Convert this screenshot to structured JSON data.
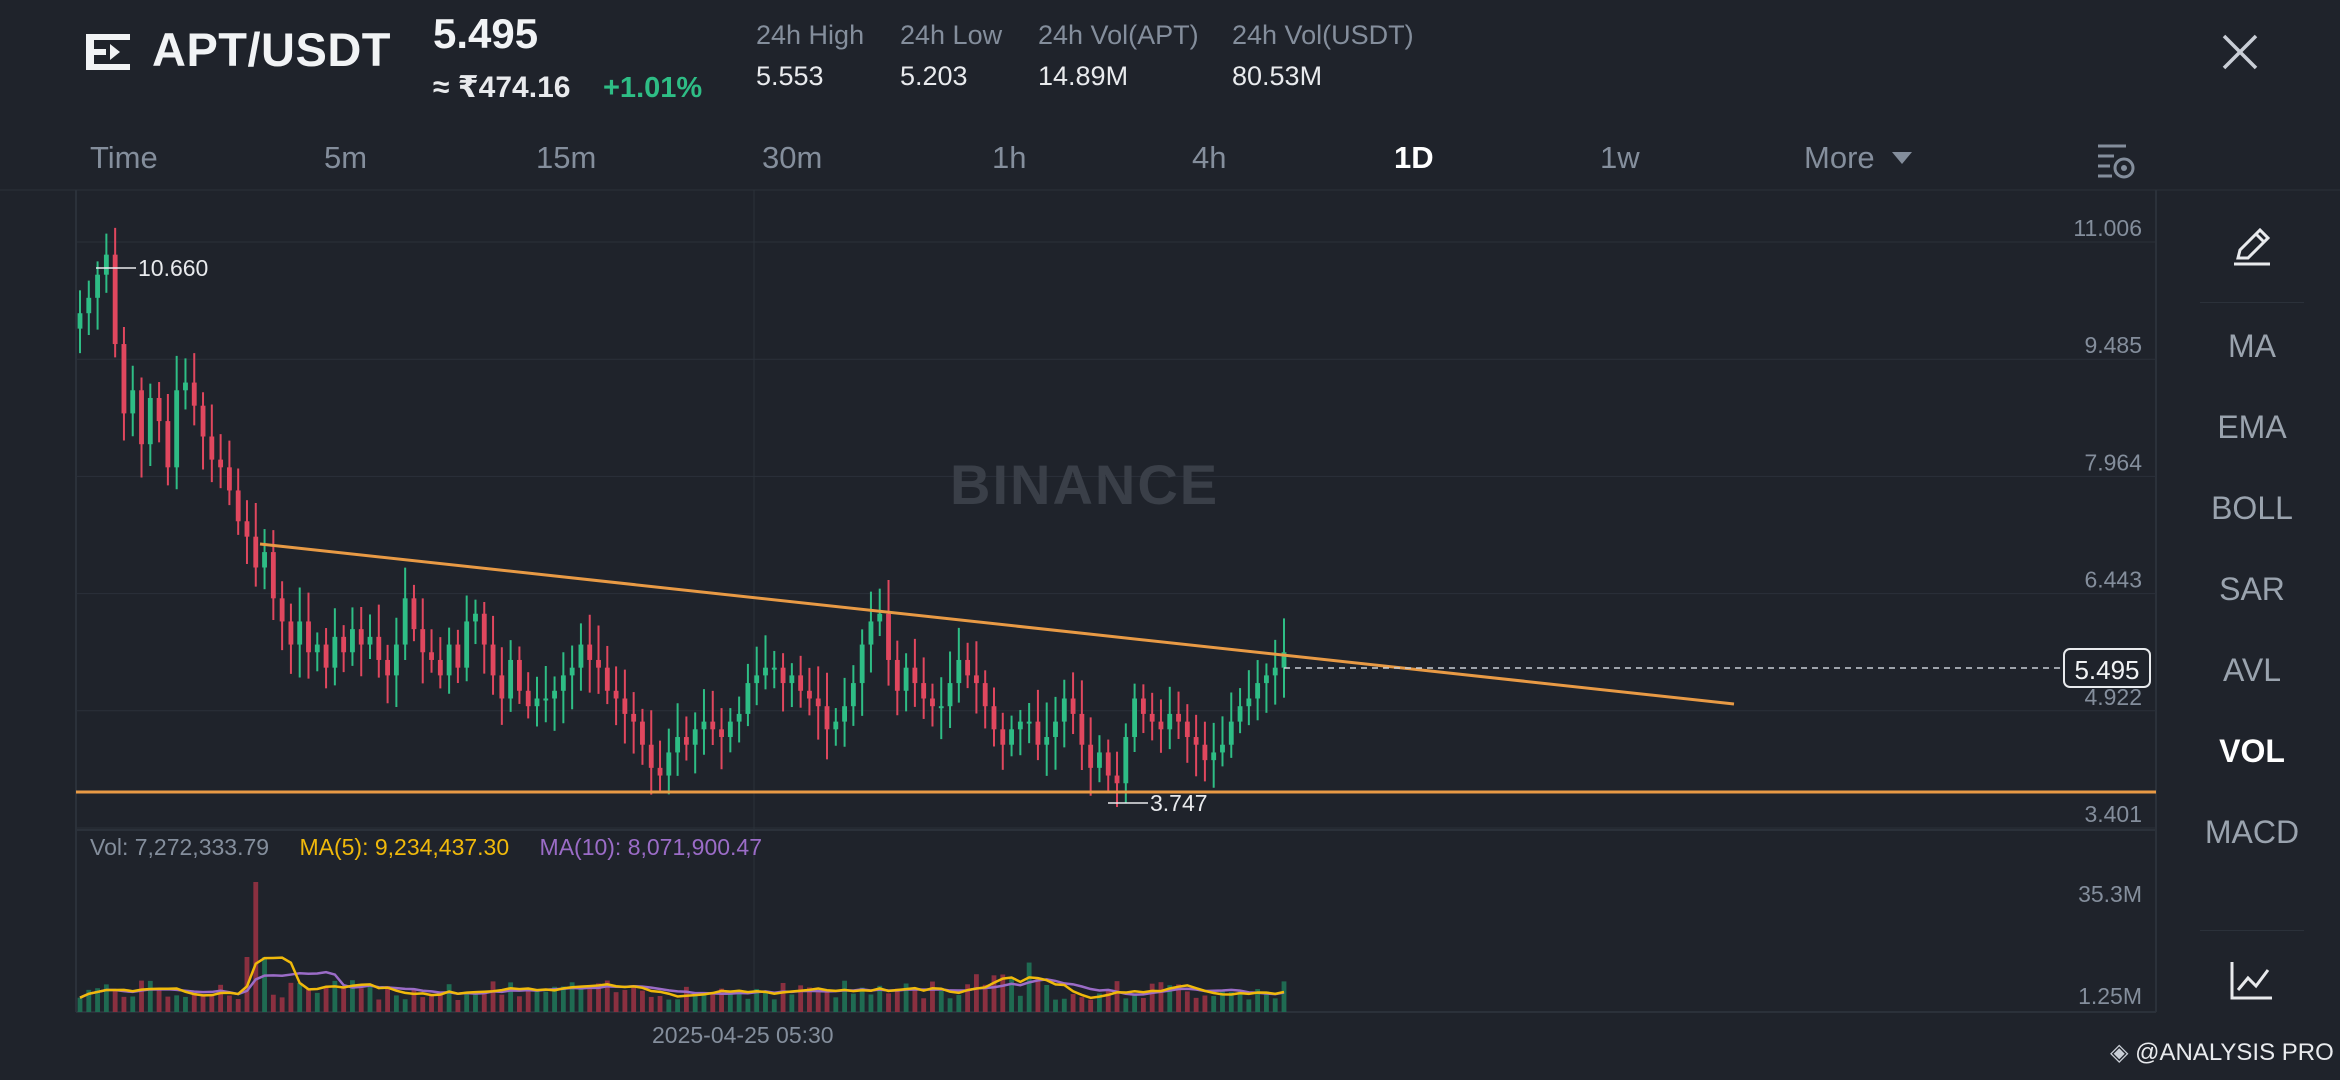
{
  "header": {
    "pair": "APT/USDT",
    "last_price": "5.495",
    "fiat_price": "≈ ₹474.16",
    "change": "+1.01%",
    "stats": [
      {
        "label": "24h High",
        "value": "5.553"
      },
      {
        "label": "24h Low",
        "value": "5.203"
      },
      {
        "label": "24h Vol(APT)",
        "value": "14.89M"
      },
      {
        "label": "24h Vol(USDT)",
        "value": "80.53M"
      }
    ]
  },
  "intervals": [
    "Time",
    "5m",
    "15m",
    "30m",
    "1h",
    "4h",
    "1D",
    "1w",
    "More"
  ],
  "active_interval": "1D",
  "rail": {
    "items": [
      "MA",
      "EMA",
      "BOLL",
      "SAR",
      "AVL",
      "VOL",
      "MACD"
    ],
    "active": "VOL"
  },
  "chart": {
    "price_axis": [
      "11.006",
      "9.485",
      "7.964",
      "6.443",
      "4.922",
      "3.401"
    ],
    "current_price_tag": "5.495",
    "high_marker": "10.660",
    "low_marker": "3.747",
    "watermark": "BINANCE",
    "date_label": "2025-04-25 05:30",
    "volume_axis": [
      "35.3M",
      "1.25M"
    ]
  },
  "volume_legend": {
    "vol": "Vol: 7,272,333.79",
    "ma5": "MA(5): 9,234,437.30",
    "ma10": "MA(10): 8,071,900.47"
  },
  "footer_brand": "@ANALYSIS PRO",
  "colors": {
    "up": "#2ebd85",
    "down": "#e0475e",
    "trendline": "#e89a45",
    "ma5": "#f0b90b",
    "ma10": "#9b6cc7",
    "bg": "#1f232b"
  },
  "chart_data": {
    "type": "candlestick",
    "price_range": [
      3.401,
      11.006
    ],
    "series_close": [
      9.9,
      10.1,
      10.4,
      10.66,
      9.5,
      8.6,
      8.9,
      8.2,
      8.8,
      8.5,
      7.9,
      8.9,
      9.0,
      8.7,
      8.3,
      8.0,
      7.9,
      7.6,
      7.2,
      7.0,
      6.6,
      6.8,
      6.2,
      5.9,
      5.6,
      5.9,
      5.5,
      5.6,
      5.3,
      5.7,
      5.5,
      5.8,
      5.6,
      5.7,
      5.4,
      5.2,
      5.6,
      6.2,
      5.8,
      5.5,
      5.4,
      5.2,
      5.6,
      5.3,
      5.9,
      6.0,
      5.6,
      5.2,
      4.9,
      5.4,
      5.0,
      4.8,
      4.9,
      4.9,
      5.0,
      5.2,
      5.3,
      5.6,
      5.4,
      5.3,
      5.0,
      4.9,
      4.7,
      4.6,
      4.3,
      4.0,
      3.9,
      4.2,
      4.4,
      4.3,
      4.5,
      4.6,
      4.5,
      4.4,
      4.6,
      4.7,
      5.1,
      5.2,
      5.3,
      5.3,
      5.1,
      5.2,
      5.0,
      4.9,
      4.8,
      4.5,
      4.6,
      4.8,
      5.1,
      5.6,
      5.9,
      6.0,
      5.4,
      5.0,
      5.3,
      5.1,
      4.9,
      4.8,
      4.8,
      5.1,
      5.4,
      5.2,
      5.1,
      4.8,
      4.5,
      4.3,
      4.5,
      4.6,
      4.6,
      4.3,
      4.4,
      4.6,
      4.9,
      4.7,
      4.3,
      4.0,
      4.2,
      3.9,
      3.8,
      4.4,
      4.9,
      4.7,
      4.6,
      4.5,
      4.7,
      4.6,
      4.4,
      4.3,
      4.1,
      4.2,
      4.3,
      4.6,
      4.8,
      4.9,
      5.1,
      5.2,
      5.3,
      5.5
    ],
    "volume_axis": [
      "35.3M",
      "1.25M"
    ]
  }
}
